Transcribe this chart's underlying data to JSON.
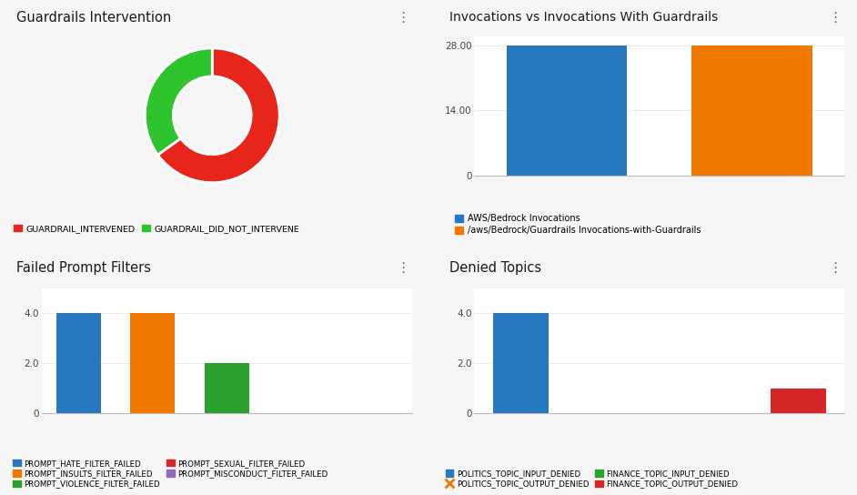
{
  "fig_bg": "#f5f5f5",
  "panel_bg": "#ffffff",
  "panel_border": "#d0d0d0",
  "panel1_title": "Guardrails Intervention",
  "donut_values": [
    65,
    35
  ],
  "donut_colors": [
    "#e8251a",
    "#2dc42d"
  ],
  "donut_labels": [
    "GUARDRAIL_INTERVENED",
    "GUARDRAIL_DID_NOT_INTERVENE"
  ],
  "panel2_title": "Invocations vs Invocations With Guardrails",
  "bar2_values": [
    28,
    28
  ],
  "bar2_colors": [
    "#2878bf",
    "#f07800"
  ],
  "bar2_yticks": [
    0,
    14.0,
    28.0
  ],
  "bar2_ytick_labels": [
    "0",
    "14.00",
    "28.00"
  ],
  "bar2_legend_labels": [
    "AWS/Bedrock Invocations",
    "/aws/Bedrock/Guardrails Invocations-with-Guardrails"
  ],
  "panel3_title": "Failed Prompt Filters",
  "bar3_categories": [
    "PROMPT_HATE_FILTER_FAILED",
    "PROMPT_INSULTS_FILTER_FAILED",
    "PROMPT_VIOLENCE_FILTER_FAILED",
    "PROMPT_SEXUAL_FILTER_FAILED",
    "PROMPT_MISCONDUCT_FILTER_FAILED"
  ],
  "bar3_values": [
    4,
    4,
    2,
    0,
    0
  ],
  "bar3_colors": [
    "#2878bf",
    "#f07800",
    "#2ca02c",
    "#d62728",
    "#9467bd"
  ],
  "bar3_yticks": [
    0,
    2.0,
    4.0
  ],
  "bar3_ytick_labels": [
    "0",
    "2.0",
    "4.0"
  ],
  "panel4_title": "Denied Topics",
  "bar4_categories": [
    "POLITICS_TOPIC_INPUT_DENIED",
    "POLITICS_TOPIC_OUTPUT_DENIED",
    "FINANCE_TOPIC_INPUT_DENIED",
    "FINANCE_TOPIC_OUTPUT_DENIED"
  ],
  "bar4_values": [
    4,
    0,
    0,
    1
  ],
  "bar4_colors": [
    "#2878bf",
    "#f07800",
    "#2ca02c",
    "#d62728"
  ],
  "bar4_yticks": [
    0,
    2.0,
    4.0
  ],
  "bar4_ytick_labels": [
    "0",
    "2.0",
    "4.0"
  ],
  "bar4_legend_labels": [
    "POLITICS_TOPIC_INPUT_DENIED",
    "POLITICS_TOPIC_OUTPUT_DENIED",
    "FINANCE_TOPIC_INPUT_DENIED",
    "FINANCE_TOPIC_OUTPUT_DENIED"
  ],
  "bar4_legend_markers": [
    "circle",
    "x",
    "circle",
    "circle"
  ]
}
